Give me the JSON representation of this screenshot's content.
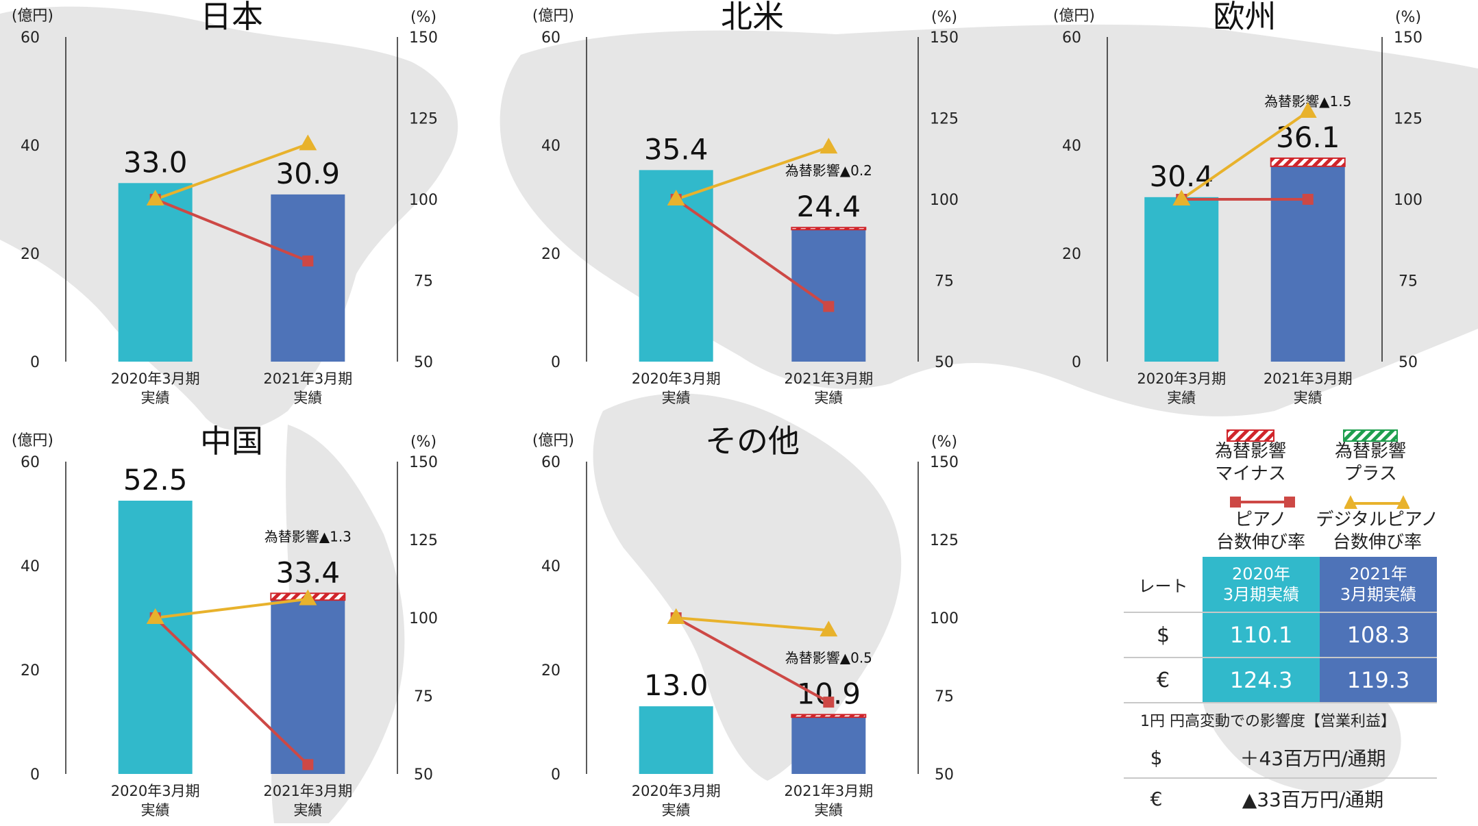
{
  "common": {
    "y_unit": "(億円)",
    "y2_unit": "(%)",
    "y_ticks": [
      "0",
      "20",
      "40",
      "60"
    ],
    "y2_ticks": [
      "50",
      "75",
      "100",
      "125",
      "150"
    ],
    "categories": [
      [
        "2020年3月期",
        "実績"
      ],
      [
        "2021年3月期",
        "実績"
      ]
    ]
  },
  "colors": {
    "bar_2020": "#31b9cb",
    "bar_2021": "#4e73b8",
    "fx_minus": "#d0252b",
    "fx_plus": "#1e9f4e",
    "piano_line": "#cd4845",
    "digital_line": "#e8b22c"
  },
  "legend": {
    "fx_minus": [
      "為替影響",
      "マイナス"
    ],
    "fx_plus": [
      "為替影響",
      "プラス"
    ],
    "piano": [
      "ピアノ",
      "台数伸び率"
    ],
    "digital": [
      "デジタルピアノ",
      "台数伸び率"
    ]
  },
  "rates": {
    "header_label": "レート",
    "columns": [
      [
        "2020年",
        "3月期実績"
      ],
      [
        "2021年",
        "3月期実績"
      ]
    ],
    "rows": [
      {
        "currency": "$",
        "values": [
          "110.1",
          "108.3"
        ]
      },
      {
        "currency": "€",
        "values": [
          "124.3",
          "119.3"
        ]
      }
    ]
  },
  "sensitivity": {
    "title": "1円 円高変動での影響度【営業利益】",
    "rows": [
      {
        "currency": "$",
        "value": "＋43百万円/通期"
      },
      {
        "currency": "€",
        "value": "▲33百万円/通期"
      }
    ]
  },
  "chart_data": [
    {
      "type": "bar",
      "title": "日本",
      "categories": [
        "2020年3月期 実績",
        "2021年3月期 実績"
      ],
      "values": [
        33.0,
        30.9
      ],
      "labels": [
        "33.0",
        "30.9"
      ],
      "ylim": [
        0,
        60
      ],
      "y2lim": [
        50,
        150
      ],
      "fx": {
        "sign": "none",
        "amount": 0,
        "label": ""
      },
      "series": [
        {
          "name": "ピアノ台数伸び率",
          "axis": "y2",
          "values": [
            100,
            81
          ]
        },
        {
          "name": "デジタルピアノ台数伸び率",
          "axis": "y2",
          "values": [
            100,
            117
          ]
        }
      ]
    },
    {
      "type": "bar",
      "title": "北米",
      "categories": [
        "2020年3月期 実績",
        "2021年3月期 実績"
      ],
      "values": [
        35.4,
        24.4
      ],
      "labels": [
        "35.4",
        "24.4"
      ],
      "ylim": [
        0,
        60
      ],
      "y2lim": [
        50,
        150
      ],
      "fx": {
        "sign": "minus",
        "amount": 0.2,
        "label": "為替影響▲0.2"
      },
      "series": [
        {
          "name": "ピアノ台数伸び率",
          "axis": "y2",
          "values": [
            100,
            67
          ]
        },
        {
          "name": "デジタルピアノ台数伸び率",
          "axis": "y2",
          "values": [
            100,
            116
          ]
        }
      ]
    },
    {
      "type": "bar",
      "title": "欧州",
      "categories": [
        "2020年3月期 実績",
        "2021年3月期 実績"
      ],
      "values": [
        30.4,
        36.1
      ],
      "labels": [
        "30.4",
        "36.1"
      ],
      "ylim": [
        0,
        60
      ],
      "y2lim": [
        50,
        150
      ],
      "fx": {
        "sign": "minus",
        "amount": 1.5,
        "label": "為替影響▲1.5"
      },
      "series": [
        {
          "name": "ピアノ台数伸び率",
          "axis": "y2",
          "values": [
            100,
            100
          ]
        },
        {
          "name": "デジタルピアノ台数伸び率",
          "axis": "y2",
          "values": [
            100,
            127
          ]
        }
      ]
    },
    {
      "type": "bar",
      "title": "中国",
      "categories": [
        "2020年3月期 実績",
        "2021年3月期 実績"
      ],
      "values": [
        52.5,
        33.4
      ],
      "labels": [
        "52.5",
        "33.4"
      ],
      "ylim": [
        0,
        60
      ],
      "y2lim": [
        50,
        150
      ],
      "fx": {
        "sign": "minus",
        "amount": 1.3,
        "label": "為替影響▲1.3"
      },
      "series": [
        {
          "name": "ピアノ台数伸び率",
          "axis": "y2",
          "values": [
            100,
            53
          ]
        },
        {
          "name": "デジタルピアノ台数伸び率",
          "axis": "y2",
          "values": [
            100,
            106
          ]
        }
      ]
    },
    {
      "type": "bar",
      "title": "その他",
      "categories": [
        "2020年3月期 実績",
        "2021年3月期 実績"
      ],
      "values": [
        13.0,
        10.9
      ],
      "labels": [
        "13.0",
        "10.9"
      ],
      "ylim": [
        0,
        60
      ],
      "y2lim": [
        50,
        150
      ],
      "fx": {
        "sign": "minus",
        "amount": 0.5,
        "label": "為替影響▲0.5"
      },
      "series": [
        {
          "name": "ピアノ台数伸び率",
          "axis": "y2",
          "values": [
            100,
            73
          ]
        },
        {
          "name": "デジタルピアノ台数伸び率",
          "axis": "y2",
          "values": [
            100,
            96
          ]
        }
      ]
    }
  ]
}
